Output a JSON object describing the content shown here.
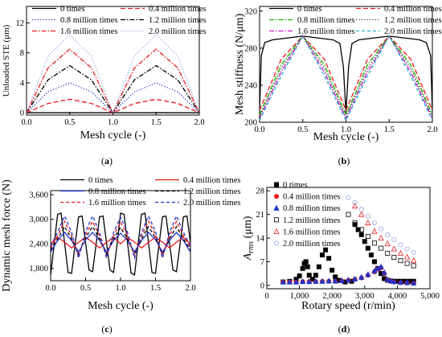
{
  "chart_data": [
    {
      "type": "line",
      "panel_label": "a",
      "xlabel": "Mesh cycle (-)",
      "ylabel": "Unloaded STE (μm)",
      "xlim": [
        0,
        2
      ],
      "ylim": [
        -0.3,
        14.2
      ],
      "xticks": [
        "0.0",
        "0.5",
        "1.0",
        "1.5",
        "2.0"
      ],
      "yticks": [
        "0",
        "4",
        "8",
        "12"
      ],
      "legend_placement": "top",
      "series": [
        {
          "name": "0 times",
          "color": "#000000",
          "dash": "solid",
          "x": [
            0,
            0.25,
            0.5,
            0.75,
            1.0,
            1.25,
            1.5,
            1.75,
            2.0
          ],
          "y": [
            0,
            0,
            0,
            0,
            0,
            0,
            0,
            0,
            0
          ]
        },
        {
          "name": "0.4 million times",
          "color": "#e8191c",
          "dash": "longdash",
          "x": [
            0,
            0.25,
            0.5,
            0.75,
            1.0,
            1.25,
            1.5,
            1.75,
            2.0
          ],
          "y": [
            0,
            1.25,
            1.8,
            1.25,
            0,
            1.25,
            1.8,
            1.25,
            0
          ]
        },
        {
          "name": "0.8 million times",
          "color": "#2233c8",
          "dash": "dot",
          "x": [
            0,
            0.25,
            0.5,
            0.75,
            1.0,
            1.25,
            1.5,
            1.75,
            2.0
          ],
          "y": [
            0,
            2.8,
            4.0,
            2.8,
            0,
            2.8,
            4.0,
            2.8,
            0
          ]
        },
        {
          "name": "1.2 million times",
          "color": "#000000",
          "dash": "dashdot",
          "x": [
            0,
            0.25,
            0.5,
            0.75,
            1.0,
            1.25,
            1.5,
            1.75,
            2.0
          ],
          "y": [
            0,
            4.4,
            6.3,
            4.4,
            0,
            4.4,
            6.3,
            4.4,
            0
          ]
        },
        {
          "name": "1.6 million times",
          "color": "#e8191c",
          "dash": "dashdot",
          "x": [
            0,
            0.25,
            0.5,
            0.75,
            1.0,
            1.25,
            1.5,
            1.75,
            2.0
          ],
          "y": [
            0,
            6.0,
            8.5,
            6.0,
            0,
            6.0,
            8.5,
            6.0,
            0
          ]
        },
        {
          "name": "2.0 million times",
          "color": "#9aa6e6",
          "dash": "dot",
          "x": [
            0,
            0.25,
            0.5,
            0.75,
            1.0,
            1.25,
            1.5,
            1.75,
            2.0
          ],
          "y": [
            0,
            7.6,
            10.4,
            7.6,
            0,
            7.6,
            10.4,
            7.6,
            0
          ]
        }
      ]
    },
    {
      "type": "line",
      "panel_label": "b",
      "xlabel": "Mesh cycle (-)",
      "ylabel": "Mesh stiffness (N/μm)",
      "xlim": [
        0,
        2
      ],
      "ylim": [
        200,
        325
      ],
      "xticks": [
        "0.0",
        "0.5",
        "1.0",
        "1.5",
        "2.0"
      ],
      "yticks": [
        "200",
        "240",
        "280",
        "320"
      ],
      "legend_placement": "top",
      "series": [
        {
          "name": "0 times",
          "color": "#000000",
          "dash": "solid",
          "x": [
            0,
            0.02,
            0.06,
            0.15,
            0.5,
            0.85,
            0.93,
            0.97,
            1.0,
            1.03,
            1.07,
            1.15,
            1.5,
            1.85,
            1.93,
            1.98,
            2.0
          ],
          "y": [
            212,
            272,
            286,
            289,
            293,
            289,
            285,
            260,
            210,
            260,
            285,
            289,
            293,
            289,
            286,
            272,
            212
          ]
        },
        {
          "name": "0.4 million times",
          "color": "#e8191c",
          "dash": "longdash",
          "x": [
            0,
            0.25,
            0.5,
            0.75,
            1.0,
            1.25,
            1.5,
            1.75,
            2.0
          ],
          "y": [
            213,
            268,
            293,
            268,
            213,
            268,
            293,
            268,
            213
          ]
        },
        {
          "name": "0.8 million times",
          "color": "#1fb000",
          "dash": "dashdot",
          "x": [
            0,
            0.25,
            0.5,
            0.75,
            1.0,
            1.25,
            1.5,
            1.75,
            2.0
          ],
          "y": [
            208,
            262,
            293,
            262,
            208,
            262,
            293,
            262,
            208
          ]
        },
        {
          "name": "1.2 million times",
          "color": "#333333",
          "dash": "dot",
          "x": [
            0,
            0.25,
            0.5,
            0.75,
            1.0,
            1.25,
            1.5,
            1.75,
            2.0
          ],
          "y": [
            206,
            258,
            293,
            258,
            206,
            258,
            293,
            258,
            206
          ]
        },
        {
          "name": "1.6 million times",
          "color": "#c41fd6",
          "dash": "dashdot",
          "x": [
            0,
            0.25,
            0.5,
            0.75,
            1.0,
            1.25,
            1.5,
            1.75,
            2.0
          ],
          "y": [
            204,
            254,
            293,
            254,
            204,
            254,
            293,
            254,
            204
          ]
        },
        {
          "name": "2.0 million times",
          "color": "#22b6c8",
          "dash": "dash",
          "x": [
            0,
            0.25,
            0.5,
            0.75,
            1.0,
            1.25,
            1.5,
            1.75,
            2.0
          ],
          "y": [
            202,
            250,
            293,
            250,
            202,
            250,
            293,
            250,
            202
          ]
        }
      ]
    },
    {
      "type": "line",
      "panel_label": "c",
      "xlabel": "Mesh cycle (-)",
      "ylabel": "Dynamic mesh force (N)",
      "xlim": [
        0,
        2
      ],
      "ylim": [
        1500,
        3700
      ],
      "xticks": [
        "0.0",
        "0.5",
        "1.0",
        "1.5",
        "2.0"
      ],
      "yticks": [
        "1,800",
        "2,400",
        "3,000",
        "3,600"
      ],
      "legend_placement": "top",
      "series": [
        {
          "name": "0 times",
          "color": "#000000",
          "dash": "solid",
          "x": [
            0.0,
            0.05,
            0.1,
            0.15,
            0.2,
            0.25,
            0.3,
            0.35,
            0.4,
            0.45,
            0.5,
            0.55,
            0.6,
            0.65,
            0.7,
            0.75,
            0.8,
            0.85,
            0.9,
            0.95,
            1.0,
            1.05,
            1.1,
            1.15,
            1.2,
            1.25,
            1.3,
            1.35,
            1.4,
            1.45,
            1.5,
            1.55,
            1.6,
            1.65,
            1.7,
            1.75,
            1.8,
            1.85,
            1.9,
            1.95,
            2.0
          ],
          "y": [
            1640,
            2380,
            3120,
            3150,
            2420,
            1700,
            1680,
            2380,
            3060,
            3080,
            2420,
            1760,
            1720,
            2380,
            3060,
            3080,
            2420,
            1760,
            1700,
            2380,
            3150,
            3120,
            2420,
            1690,
            1640,
            2380,
            3120,
            3150,
            2420,
            1700,
            1680,
            2380,
            3060,
            3080,
            2420,
            1760,
            1720,
            2380,
            3060,
            3080,
            2420
          ]
        },
        {
          "name": "0.4 million times",
          "color": "#e8191c",
          "dash": "solid",
          "x": [
            0.0,
            0.1,
            0.2,
            0.3,
            0.4,
            0.5,
            0.6,
            0.7,
            0.8,
            0.9,
            1.0,
            1.1,
            1.2,
            1.3,
            1.4,
            1.5,
            1.6,
            1.7,
            1.8,
            1.9,
            2.0
          ],
          "y": [
            2400,
            2560,
            2440,
            2300,
            2440,
            2560,
            2440,
            2300,
            2440,
            2560,
            2400,
            2560,
            2440,
            2300,
            2440,
            2560,
            2440,
            2300,
            2440,
            2560,
            2400
          ]
        },
        {
          "name": "0.8 million times",
          "color": "#2233c8",
          "dash": "solid",
          "x": [
            0.0,
            0.1,
            0.2,
            0.3,
            0.4,
            0.5,
            0.6,
            0.7,
            0.8,
            0.9,
            1.0,
            1.1,
            1.2,
            1.3,
            1.4,
            1.5,
            1.6,
            1.7,
            1.8,
            1.9,
            2.0
          ],
          "y": [
            2200,
            2480,
            2680,
            2480,
            2200,
            2500,
            2680,
            2480,
            2200,
            2480,
            2660,
            2480,
            2200,
            2480,
            2680,
            2500,
            2200,
            2480,
            2680,
            2480,
            2200
          ]
        },
        {
          "name": "1.2 million times",
          "color": "#000000",
          "dash": "dash",
          "x": [
            0.0,
            0.1,
            0.2,
            0.3,
            0.4,
            0.5,
            0.6,
            0.7,
            0.8,
            0.9,
            1.0,
            1.1,
            1.2,
            1.3,
            1.4,
            1.5,
            1.6,
            1.7,
            1.8,
            1.9,
            2.0
          ],
          "y": [
            2250,
            2520,
            2820,
            2520,
            2150,
            2550,
            2820,
            2520,
            2150,
            2520,
            2800,
            2520,
            2150,
            2520,
            2820,
            2550,
            2150,
            2520,
            2820,
            2520,
            2250
          ]
        },
        {
          "name": "1.6 million times",
          "color": "#e8191c",
          "dash": "dash",
          "x": [
            0.0,
            0.1,
            0.2,
            0.3,
            0.4,
            0.5,
            0.6,
            0.7,
            0.8,
            0.9,
            1.0,
            1.1,
            1.2,
            1.3,
            1.4,
            1.5,
            1.6,
            1.7,
            1.8,
            1.9,
            2.0
          ],
          "y": [
            2300,
            2600,
            2950,
            2600,
            2100,
            2620,
            2950,
            2600,
            2100,
            2600,
            2930,
            2600,
            2100,
            2600,
            2950,
            2620,
            2100,
            2600,
            2950,
            2600,
            2300
          ]
        },
        {
          "name": "2.0 million times",
          "color": "#2233c8",
          "dash": "dash",
          "x": [
            0.0,
            0.1,
            0.2,
            0.3,
            0.4,
            0.5,
            0.6,
            0.7,
            0.8,
            0.9,
            1.0,
            1.1,
            1.2,
            1.3,
            1.4,
            1.5,
            1.6,
            1.7,
            1.8,
            1.9,
            2.0
          ],
          "y": [
            2350,
            2680,
            3080,
            2680,
            2050,
            2700,
            3080,
            2680,
            2050,
            2680,
            3050,
            2680,
            2050,
            2680,
            3080,
            2700,
            2050,
            2680,
            3080,
            2680,
            2350
          ]
        }
      ]
    },
    {
      "type": "scatter",
      "panel_label": "d",
      "xlabel": "Rotary speed (r/min)",
      "ylabel": "A_rms (μm)",
      "ylabel_main": "A",
      "ylabel_sub": "rms",
      "ylabel_unit": " (μm)",
      "xlim": [
        0,
        5000
      ],
      "ylim": [
        -1,
        29
      ],
      "xticks": [
        "0",
        "1,000",
        "2,000",
        "3,000",
        "4,000",
        "5,000"
      ],
      "yticks": [
        "0",
        "7",
        "14",
        "21",
        "28"
      ],
      "legend_placement": "top-left",
      "series": [
        {
          "name": "0 times",
          "color": "#000000",
          "marker": "square-filled",
          "x": [
            500,
            700,
            900,
            1000,
            1100,
            1150,
            1200,
            1250,
            1300,
            1400,
            1500,
            1600,
            1700,
            1800,
            1900,
            2000,
            2100,
            2200,
            2400,
            2600,
            2700,
            2800,
            2900,
            3000,
            3100,
            3200,
            3300,
            3400,
            3500,
            3600,
            3700,
            3800,
            3900,
            4000,
            4100,
            4200,
            4300,
            4400,
            4500
          ],
          "y": [
            1.0,
            1.2,
            1.8,
            2.8,
            5.0,
            6.5,
            7.0,
            5.5,
            3.0,
            1.8,
            3.0,
            5.5,
            9.0,
            10.5,
            8.0,
            4.5,
            2.5,
            1.5,
            1.0,
            1.2,
            18.0,
            16.5,
            15.0,
            13.0,
            11.0,
            9.0,
            7.0,
            5.0,
            3.5,
            2.0,
            1.5,
            1.3,
            1.2,
            1.2,
            1.2,
            1.2,
            1.2,
            1.2,
            1.2
          ]
        },
        {
          "name": "0.4 million times",
          "color": "#e8191c",
          "marker": "circle-filled",
          "x": [
            500,
            700,
            900,
            1100,
            1300,
            1500,
            1700,
            1900,
            2100,
            2300,
            2500,
            2700,
            2900,
            3100,
            3300,
            3400,
            3500,
            3600,
            3700,
            3800,
            3900,
            4100,
            4300,
            4500
          ],
          "y": [
            1.0,
            1.0,
            1.0,
            1.1,
            1.1,
            1.1,
            1.2,
            1.2,
            1.2,
            1.3,
            1.5,
            1.8,
            2.2,
            3.0,
            4.0,
            4.8,
            5.2,
            3.5,
            1.5,
            1.2,
            1.0,
            0.8,
            0.7,
            0.6
          ]
        },
        {
          "name": "0.8 million times",
          "color": "#2233c8",
          "marker": "triangle-filled",
          "x": [
            500,
            700,
            900,
            1100,
            1300,
            1500,
            1700,
            1900,
            2100,
            2300,
            2500,
            2700,
            2900,
            3100,
            3300,
            3400,
            3500,
            3600,
            3700,
            3800,
            3900,
            4100,
            4300,
            4500
          ],
          "y": [
            1.0,
            1.0,
            1.0,
            1.1,
            1.1,
            1.2,
            1.2,
            1.3,
            1.3,
            1.4,
            1.6,
            1.9,
            2.4,
            3.2,
            4.3,
            5.0,
            5.5,
            3.8,
            1.7,
            1.3,
            1.1,
            0.9,
            0.8,
            0.7
          ]
        },
        {
          "name": "1.2 million times",
          "color": "#000000",
          "marker": "square-open",
          "x": [
            2500,
            2700,
            2900,
            3100,
            3300,
            3500,
            3700,
            3900,
            4100,
            4300,
            4500
          ],
          "y": [
            21.0,
            18.5,
            16.5,
            14.5,
            12.5,
            11.0,
            9.5,
            8.3,
            7.3,
            6.5,
            5.8
          ]
        },
        {
          "name": "1.6 million times",
          "color": "#e8191c",
          "marker": "triangle-open",
          "x": [
            2700,
            2900,
            3100,
            3300,
            3500,
            3700,
            3900,
            4100,
            4300,
            4500
          ],
          "y": [
            23.5,
            21.0,
            18.5,
            16.0,
            14.0,
            12.3,
            10.8,
            9.5,
            8.4,
            7.4
          ]
        },
        {
          "name": "2.0 million times",
          "color": "#9aa6e6",
          "marker": "circle-open",
          "x": [
            2500,
            2700,
            2900,
            3100,
            3300,
            3500,
            3700,
            3900,
            4100,
            4300,
            4500
          ],
          "y": [
            26.0,
            24.5,
            22.5,
            20.5,
            18.5,
            16.7,
            15.0,
            13.5,
            12.0,
            10.8,
            9.7
          ]
        }
      ]
    }
  ]
}
